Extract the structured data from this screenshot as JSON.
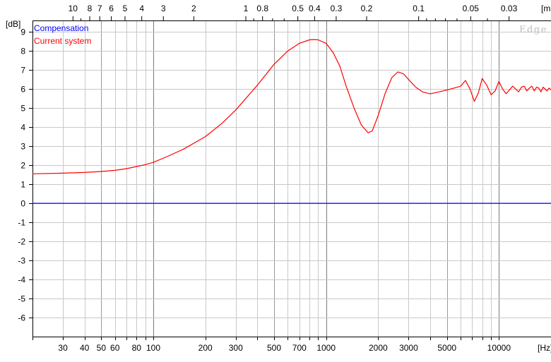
{
  "chart_data": {
    "type": "line",
    "xscale": "log",
    "xlim": [
      20,
      20000
    ],
    "ylim": [
      -7,
      9.6
    ],
    "ylabel_unit": "[dB]",
    "xlabel_unit": "[Hz]",
    "top_axis_unit": "[m",
    "brand": "Edge",
    "grid": true,
    "legend_position": "top-left",
    "x_ticks": [
      {
        "value": 30,
        "label": "30"
      },
      {
        "value": 40,
        "label": "40"
      },
      {
        "value": 50,
        "label": "50"
      },
      {
        "value": 60,
        "label": "60"
      },
      {
        "value": 80,
        "label": "80"
      },
      {
        "value": 100,
        "label": "100"
      },
      {
        "value": 200,
        "label": "200"
      },
      {
        "value": 300,
        "label": "300"
      },
      {
        "value": 500,
        "label": "500"
      },
      {
        "value": 700,
        "label": "700"
      },
      {
        "value": 1000,
        "label": "1000"
      },
      {
        "value": 2000,
        "label": "2000"
      },
      {
        "value": 3000,
        "label": "3000"
      },
      {
        "value": 5000,
        "label": "5000"
      },
      {
        "value": 10000,
        "label": "10000"
      }
    ],
    "y_ticks": [
      9,
      8,
      7,
      6,
      5,
      4,
      3,
      2,
      1,
      0,
      -1,
      -2,
      -3,
      -4,
      -5,
      -6
    ],
    "top_ticks": [
      {
        "value": 10,
        "label": "10"
      },
      {
        "value": 8,
        "label": "8"
      },
      {
        "value": 7,
        "label": "7"
      },
      {
        "value": 6,
        "label": "6"
      },
      {
        "value": 5,
        "label": "5"
      },
      {
        "value": 4,
        "label": "4"
      },
      {
        "value": 3,
        "label": "3"
      },
      {
        "value": 2,
        "label": "2"
      },
      {
        "value": 1,
        "label": "1"
      },
      {
        "value": 0.8,
        "label": "0.8"
      },
      {
        "value": 0.5,
        "label": "0.5"
      },
      {
        "value": 0.4,
        "label": "0.4"
      },
      {
        "value": 0.3,
        "label": "0.3"
      },
      {
        "value": 0.2,
        "label": "0.2"
      },
      {
        "value": 0.1,
        "label": "0.1"
      },
      {
        "value": 0.05,
        "label": "0.05"
      },
      {
        "value": 0.03,
        "label": "0.03"
      }
    ],
    "series": [
      {
        "name": "Compensation",
        "color": "#0000ff",
        "x": [
          20,
          20000
        ],
        "y": [
          0,
          0
        ]
      },
      {
        "name": "Current system",
        "color": "#ff0000",
        "x": [
          20,
          30,
          40,
          50,
          60,
          70,
          80,
          90,
          100,
          120,
          150,
          200,
          250,
          300,
          400,
          500,
          600,
          700,
          800,
          850,
          900,
          1000,
          1100,
          1200,
          1300,
          1450,
          1600,
          1750,
          1850,
          2000,
          2200,
          2400,
          2600,
          2800,
          3000,
          3300,
          3600,
          4000,
          4500,
          5000,
          5500,
          6000,
          6400,
          6800,
          7200,
          7600,
          8000,
          8500,
          9000,
          9500,
          10000,
          10500,
          11000,
          11500,
          12000,
          12500,
          13000,
          13500,
          14000,
          14500,
          15000,
          15500,
          16000,
          16500,
          17000,
          17500,
          18000,
          18500,
          19000,
          19500,
          20000
        ],
        "y": [
          1.55,
          1.58,
          1.62,
          1.67,
          1.73,
          1.82,
          1.93,
          2.03,
          2.15,
          2.45,
          2.85,
          3.5,
          4.2,
          4.9,
          6.2,
          7.3,
          8.0,
          8.4,
          8.58,
          8.6,
          8.58,
          8.4,
          7.9,
          7.2,
          6.2,
          5.0,
          4.1,
          3.7,
          3.8,
          4.6,
          5.8,
          6.6,
          6.9,
          6.8,
          6.5,
          6.1,
          5.85,
          5.75,
          5.85,
          5.95,
          6.05,
          6.15,
          6.45,
          6.0,
          5.35,
          5.8,
          6.55,
          6.2,
          5.7,
          5.9,
          6.4,
          6.0,
          5.75,
          5.95,
          6.15,
          6.0,
          5.85,
          6.1,
          6.15,
          5.9,
          6.05,
          6.15,
          5.9,
          6.1,
          6.05,
          5.85,
          6.1,
          6.0,
          5.9,
          6.05,
          5.95
        ]
      }
    ]
  }
}
